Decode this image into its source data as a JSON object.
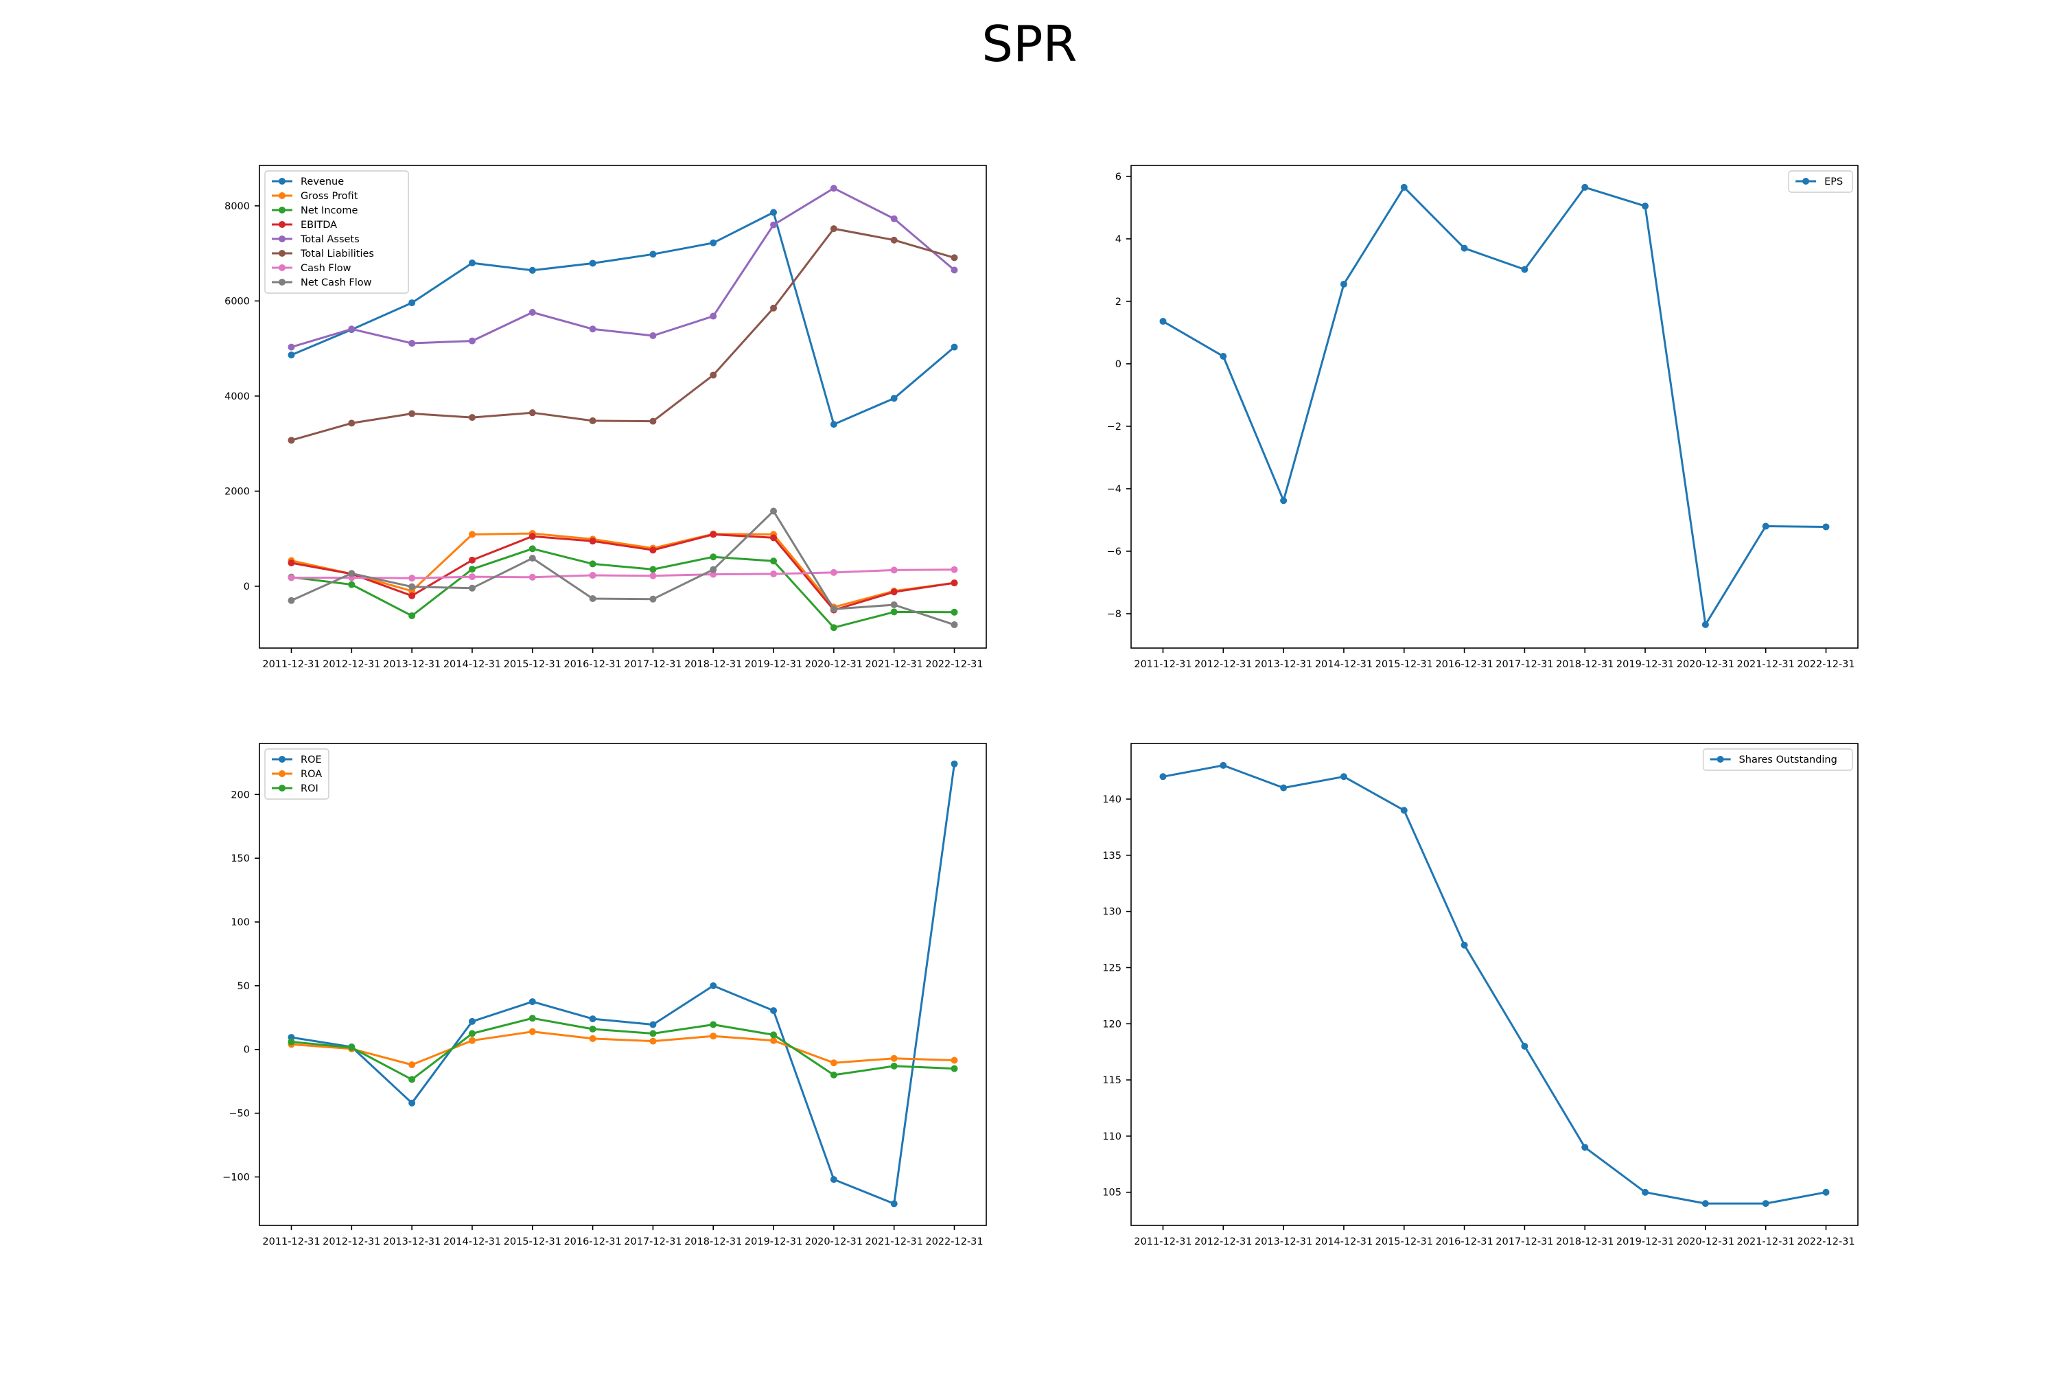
{
  "title": "SPR",
  "colors": {
    "blue": "#1f77b4",
    "orange": "#ff7f0e",
    "green": "#2ca02c",
    "red": "#d62728",
    "purple": "#9467bd",
    "brown": "#8c564b",
    "pink": "#e377c2",
    "gray": "#7f7f7f"
  },
  "chart_data": [
    {
      "type": "line",
      "x": [
        "2011-12-31",
        "2012-12-31",
        "2013-12-31",
        "2014-12-31",
        "2015-12-31",
        "2016-12-31",
        "2017-12-31",
        "2018-12-31",
        "2019-12-31",
        "2020-12-31",
        "2021-12-31",
        "2022-12-31"
      ],
      "yticks": [
        0,
        2000,
        4000,
        6000,
        8000
      ],
      "ylim": [
        -1300,
        8850
      ],
      "legend": "top-left",
      "grid": false,
      "series": [
        {
          "name": "Revenue",
          "color": "#1f77b4",
          "values": [
            4864,
            5398,
            5961,
            6799,
            6644,
            6793,
            6983,
            7222,
            7863,
            3405,
            3953,
            5030
          ]
        },
        {
          "name": "Gross Profit",
          "color": "#ff7f0e",
          "values": [
            540,
            260,
            -100,
            1090,
            1110,
            990,
            800,
            1100,
            1090,
            -440,
            -100,
            70
          ]
        },
        {
          "name": "Net Income",
          "color": "#2ca02c",
          "values": [
            192,
            35,
            -621,
            359,
            789,
            470,
            355,
            617,
            530,
            -870,
            -540,
            -546
          ]
        },
        {
          "name": "EBITDA",
          "color": "#d62728",
          "values": [
            490,
            260,
            -200,
            550,
            1050,
            950,
            760,
            1090,
            1020,
            -500,
            -120,
            70
          ]
        },
        {
          "name": "Total Assets",
          "color": "#9467bd",
          "values": [
            5030,
            5410,
            5110,
            5160,
            5760,
            5410,
            5270,
            5680,
            7600,
            8370,
            7730,
            6650
          ]
        },
        {
          "name": "Total Liabilities",
          "color": "#8c564b",
          "values": [
            3070,
            3430,
            3630,
            3550,
            3650,
            3480,
            3470,
            4440,
            5850,
            7520,
            7280,
            6910
          ]
        },
        {
          "name": "Cash Flow",
          "color": "#e377c2",
          "values": [
            180,
            180,
            170,
            200,
            190,
            230,
            220,
            250,
            260,
            290,
            340,
            350
          ]
        },
        {
          "name": "Net Cash Flow",
          "color": "#7f7f7f",
          "values": [
            -300,
            270,
            -10,
            -40,
            590,
            -260,
            -270,
            350,
            1580,
            -480,
            -390,
            -810
          ]
        }
      ]
    },
    {
      "type": "line",
      "x": [
        "2011-12-31",
        "2012-12-31",
        "2013-12-31",
        "2014-12-31",
        "2015-12-31",
        "2016-12-31",
        "2017-12-31",
        "2018-12-31",
        "2019-12-31",
        "2020-12-31",
        "2021-12-31",
        "2022-12-31"
      ],
      "yticks": [
        -8,
        -6,
        -4,
        -2,
        0,
        2,
        4,
        6
      ],
      "ylim": [
        -9.1,
        6.35
      ],
      "legend": "top-right",
      "grid": false,
      "series": [
        {
          "name": "EPS",
          "color": "#1f77b4",
          "values": [
            1.36,
            0.24,
            -4.38,
            2.55,
            5.65,
            3.7,
            3.02,
            5.65,
            5.05,
            -8.35,
            -5.2,
            -5.22
          ]
        }
      ]
    },
    {
      "type": "line",
      "x": [
        "2011-12-31",
        "2012-12-31",
        "2013-12-31",
        "2014-12-31",
        "2015-12-31",
        "2016-12-31",
        "2017-12-31",
        "2018-12-31",
        "2019-12-31",
        "2020-12-31",
        "2021-12-31",
        "2022-12-31"
      ],
      "yticks": [
        -100,
        -50,
        0,
        50,
        100,
        150,
        200
      ],
      "ylim": [
        -138,
        240
      ],
      "legend": "top-left",
      "grid": false,
      "series": [
        {
          "name": "ROE",
          "color": "#1f77b4",
          "values": [
            9.5,
            2,
            -42,
            22,
            37.5,
            24,
            19.5,
            50,
            30.5,
            -102,
            -121,
            224
          ]
        },
        {
          "name": "ROA",
          "color": "#ff7f0e",
          "values": [
            4,
            0.5,
            -12,
            7,
            14,
            8.5,
            6.5,
            10.5,
            7,
            -10.5,
            -7,
            -8.5
          ]
        },
        {
          "name": "ROI",
          "color": "#2ca02c",
          "values": [
            6,
            1.5,
            -23.5,
            12.5,
            24.5,
            16,
            12.5,
            19.5,
            11.5,
            -20,
            -13,
            -15
          ]
        }
      ]
    },
    {
      "type": "line",
      "x": [
        "2011-12-31",
        "2012-12-31",
        "2013-12-31",
        "2014-12-31",
        "2015-12-31",
        "2016-12-31",
        "2017-12-31",
        "2018-12-31",
        "2019-12-31",
        "2020-12-31",
        "2021-12-31",
        "2022-12-31"
      ],
      "yticks": [
        105,
        110,
        115,
        120,
        125,
        130,
        135,
        140
      ],
      "ylim": [
        102.05,
        144.95
      ],
      "legend": "top-right",
      "grid": false,
      "series": [
        {
          "name": "Shares Outstanding",
          "color": "#1f77b4",
          "values": [
            142,
            143,
            141,
            142,
            139,
            127,
            118,
            109,
            105,
            104,
            104,
            105
          ]
        }
      ]
    }
  ]
}
